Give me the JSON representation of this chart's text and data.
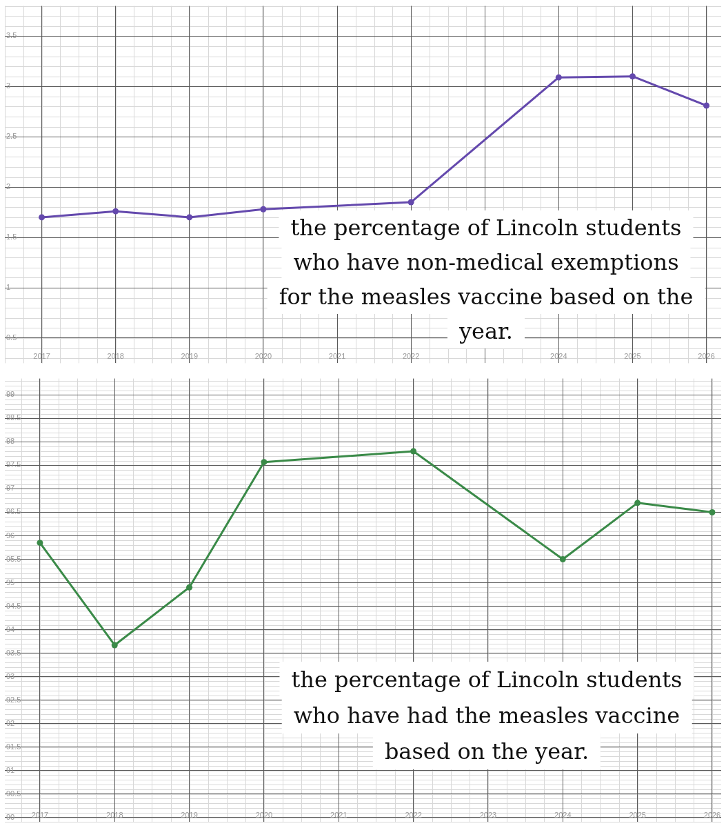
{
  "chart_data": [
    {
      "type": "line",
      "x": [
        2017,
        2018,
        2019,
        2020,
        2022,
        2024,
        2025,
        2026
      ],
      "series": [
        {
          "color": "#6449ad",
          "values": [
            1.7,
            1.76,
            1.7,
            1.78,
            1.85,
            3.09,
            3.1,
            2.81
          ]
        }
      ],
      "xlim": [
        2016.5,
        2026.2
      ],
      "xticks": [
        2017,
        2018,
        2019,
        2020,
        2021,
        2022,
        {
          "value": 2023,
          "label": null
        },
        2024,
        2025,
        2026
      ],
      "ylim": [
        0.25,
        3.8
      ],
      "yticks": [
        0.5,
        1,
        1.5,
        2,
        2.5,
        3,
        3.5
      ],
      "grid": true,
      "marker": "circle",
      "annotations": [
        "the percentage of Lincoln students\nwho have non-medical exemptions\nfor the measles vaccine based on the\nyear."
      ]
    },
    {
      "type": "line",
      "x": [
        2017,
        2018,
        2019,
        2020,
        2022,
        2024,
        2025,
        2026
      ],
      "series": [
        {
          "color": "#3a8a48",
          "values": [
            95.85,
            93.67,
            94.9,
            97.57,
            97.8,
            95.5,
            96.7,
            96.5
          ]
        }
      ],
      "xlim": [
        2016.53,
        2026.12
      ],
      "xticks": [
        2017,
        2018,
        2019,
        2020,
        2021,
        2022,
        2023,
        2024,
        2025,
        2026
      ],
      "ylim": [
        89.9,
        99.35
      ],
      "yticks": [
        90,
        90.5,
        91,
        91.5,
        92,
        92.5,
        93,
        93.5,
        94,
        94.5,
        95,
        95.5,
        96,
        96.5,
        97,
        97.5,
        98,
        98.5,
        99
      ],
      "grid": true,
      "marker": "circle",
      "annotations": [
        "the percentage of Lincoln students\nwho have had the measles vaccine\nbased on the year."
      ]
    }
  ]
}
